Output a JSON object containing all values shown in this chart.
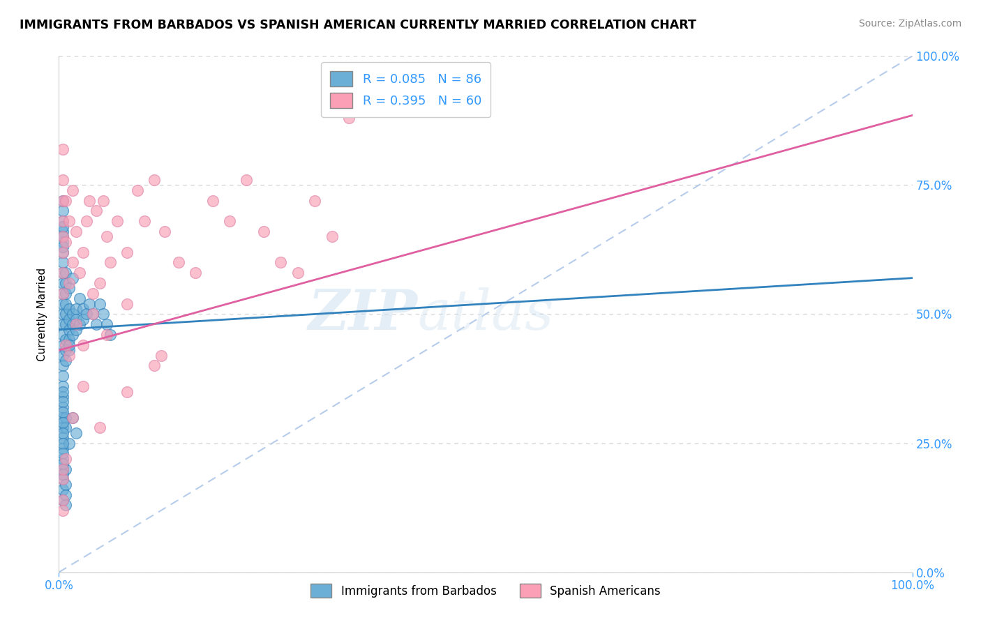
{
  "title": "IMMIGRANTS FROM BARBADOS VS SPANISH AMERICAN CURRENTLY MARRIED CORRELATION CHART",
  "source": "Source: ZipAtlas.com",
  "ylabel": "Currently Married",
  "legend_label_blue": "R = 0.085   N = 86",
  "legend_label_pink": "R = 0.395   N = 60",
  "legend_bottom_blue": "Immigrants from Barbados",
  "legend_bottom_pink": "Spanish Americans",
  "xlim": [
    0.0,
    1.0
  ],
  "ylim": [
    0.0,
    1.0
  ],
  "ytick_labels": [
    "0.0%",
    "25.0%",
    "50.0%",
    "75.0%",
    "100.0%"
  ],
  "ytick_values": [
    0.0,
    0.25,
    0.5,
    0.75,
    1.0
  ],
  "color_blue": "#6baed6",
  "color_pink": "#fa9fb5",
  "color_blue_line": "#3182bd",
  "color_pink_line": "#e05fa0",
  "color_diag": "#aec7e8",
  "watermark_zip": "ZIP",
  "watermark_atlas": "atlas",
  "blue_x": [
    0.005,
    0.005,
    0.005,
    0.005,
    0.005,
    0.005,
    0.005,
    0.005,
    0.005,
    0.005,
    0.005,
    0.005,
    0.005,
    0.005,
    0.005,
    0.005,
    0.005,
    0.005,
    0.005,
    0.005,
    0.005,
    0.005,
    0.005,
    0.005,
    0.005,
    0.005,
    0.005,
    0.005,
    0.005,
    0.005,
    0.008,
    0.008,
    0.008,
    0.008,
    0.008,
    0.008,
    0.008,
    0.008,
    0.008,
    0.008,
    0.008,
    0.008,
    0.012,
    0.012,
    0.012,
    0.012,
    0.012,
    0.012,
    0.012,
    0.016,
    0.016,
    0.016,
    0.016,
    0.016,
    0.02,
    0.02,
    0.02,
    0.02,
    0.024,
    0.024,
    0.028,
    0.028,
    0.032,
    0.036,
    0.04,
    0.044,
    0.048,
    0.052,
    0.056,
    0.06,
    0.005,
    0.005,
    0.005,
    0.005,
    0.005,
    0.005,
    0.005,
    0.005,
    0.005,
    0.005,
    0.005,
    0.005,
    0.008,
    0.008,
    0.008,
    0.012
  ],
  "blue_y": [
    0.48,
    0.5,
    0.52,
    0.54,
    0.56,
    0.46,
    0.44,
    0.42,
    0.4,
    0.38,
    0.36,
    0.34,
    0.32,
    0.3,
    0.28,
    0.26,
    0.24,
    0.22,
    0.2,
    0.18,
    0.16,
    0.6,
    0.58,
    0.62,
    0.64,
    0.66,
    0.68,
    0.7,
    0.72,
    0.14,
    0.48,
    0.5,
    0.45,
    0.43,
    0.41,
    0.52,
    0.3,
    0.28,
    0.54,
    0.56,
    0.2,
    0.58,
    0.49,
    0.47,
    0.51,
    0.45,
    0.43,
    0.25,
    0.55,
    0.5,
    0.48,
    0.46,
    0.3,
    0.57,
    0.51,
    0.49,
    0.47,
    0.27,
    0.48,
    0.53,
    0.51,
    0.49,
    0.5,
    0.52,
    0.5,
    0.48,
    0.52,
    0.5,
    0.48,
    0.46,
    0.67,
    0.65,
    0.63,
    0.35,
    0.33,
    0.31,
    0.29,
    0.27,
    0.25,
    0.23,
    0.21,
    0.19,
    0.17,
    0.15,
    0.13,
    0.44
  ],
  "pink_x": [
    0.005,
    0.005,
    0.005,
    0.005,
    0.005,
    0.005,
    0.005,
    0.005,
    0.008,
    0.008,
    0.012,
    0.012,
    0.016,
    0.016,
    0.02,
    0.024,
    0.028,
    0.032,
    0.036,
    0.04,
    0.044,
    0.048,
    0.052,
    0.056,
    0.06,
    0.068,
    0.08,
    0.092,
    0.1,
    0.112,
    0.124,
    0.14,
    0.16,
    0.18,
    0.2,
    0.22,
    0.24,
    0.26,
    0.28,
    0.3,
    0.32,
    0.34,
    0.008,
    0.012,
    0.02,
    0.028,
    0.04,
    0.056,
    0.08,
    0.112,
    0.005,
    0.005,
    0.005,
    0.005,
    0.008,
    0.016,
    0.028,
    0.048,
    0.08,
    0.12
  ],
  "pink_y": [
    0.82,
    0.76,
    0.72,
    0.68,
    0.65,
    0.62,
    0.58,
    0.54,
    0.72,
    0.64,
    0.68,
    0.56,
    0.6,
    0.74,
    0.66,
    0.58,
    0.62,
    0.68,
    0.72,
    0.54,
    0.7,
    0.56,
    0.72,
    0.65,
    0.6,
    0.68,
    0.62,
    0.74,
    0.68,
    0.76,
    0.66,
    0.6,
    0.58,
    0.72,
    0.68,
    0.76,
    0.66,
    0.6,
    0.58,
    0.72,
    0.65,
    0.88,
    0.44,
    0.42,
    0.48,
    0.44,
    0.5,
    0.46,
    0.52,
    0.4,
    0.14,
    0.12,
    0.18,
    0.2,
    0.22,
    0.3,
    0.36,
    0.28,
    0.35,
    0.42
  ]
}
